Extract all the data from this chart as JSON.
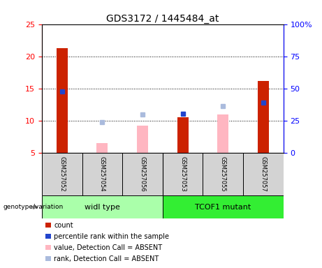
{
  "title": "GDS3172 / 1445484_at",
  "samples": [
    "GSM257052",
    "GSM257054",
    "GSM257056",
    "GSM257053",
    "GSM257055",
    "GSM257057"
  ],
  "left_ylim": [
    5,
    25
  ],
  "right_ylim": [
    0,
    100
  ],
  "left_yticks": [
    5,
    10,
    15,
    20,
    25
  ],
  "right_yticks": [
    0,
    25,
    50,
    75,
    100
  ],
  "right_yticklabels": [
    "0",
    "25",
    "50",
    "75",
    "100%"
  ],
  "red_bars": [
    21.3,
    null,
    null,
    10.5,
    null,
    16.2
  ],
  "blue_squares": [
    14.5,
    null,
    null,
    11.1,
    null,
    12.8
  ],
  "pink_bars": [
    null,
    6.5,
    9.2,
    null,
    11.0,
    null
  ],
  "light_blue_squares": [
    null,
    9.8,
    11.0,
    null,
    12.3,
    null
  ],
  "red_bar_color": "#CC2200",
  "blue_sq_color": "#2244CC",
  "pink_bar_color": "#FFB6C1",
  "light_blue_sq_color": "#AABBDD",
  "group_wt_color": "#AAFFAA",
  "group_mut_color": "#33EE33",
  "label_bg_color": "#D3D3D3",
  "legend_items": [
    {
      "color": "#CC2200",
      "label": "count"
    },
    {
      "color": "#2244CC",
      "label": "percentile rank within the sample"
    },
    {
      "color": "#FFB6C1",
      "label": "value, Detection Call = ABSENT"
    },
    {
      "color": "#AABBDD",
      "label": "rank, Detection Call = ABSENT"
    }
  ]
}
